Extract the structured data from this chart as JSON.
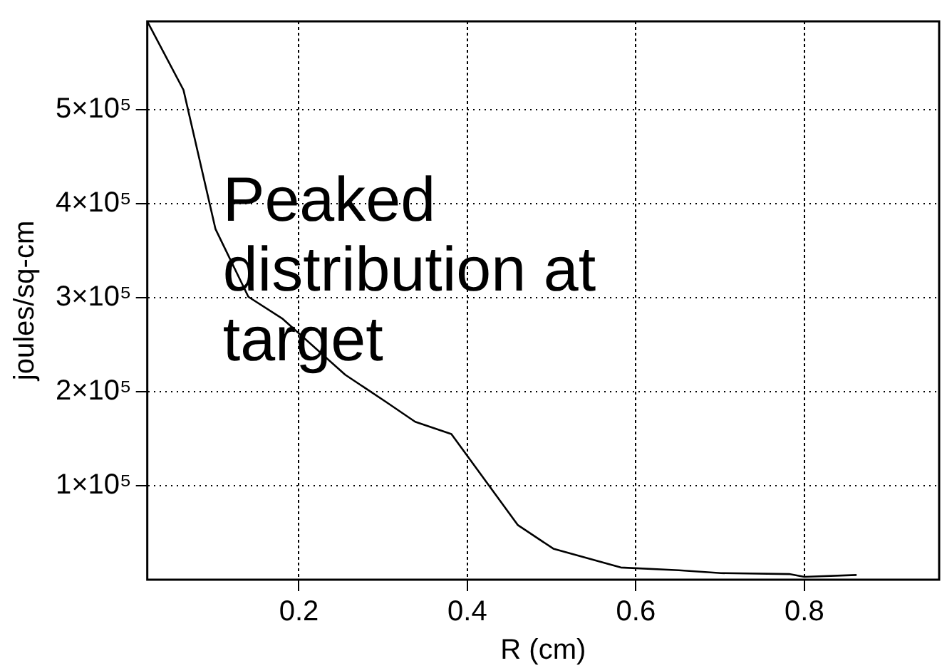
{
  "chart_data": {
    "type": "line",
    "xlabel": "R (cm)",
    "ylabel": "joules/sq-cm",
    "annotations": [
      "Peaked distribution at target"
    ],
    "x": [
      0.02,
      0.063,
      0.101,
      0.14,
      0.18,
      0.255,
      0.302,
      0.338,
      0.381,
      0.46,
      0.502,
      0.582,
      0.651,
      0.701,
      0.782,
      0.8,
      0.862
    ],
    "series": [
      {
        "color": "#000000",
        "values": [
          594000,
          521000,
          373000,
          301000,
          278000,
          218000,
          190000,
          168000,
          155000,
          58000,
          33000,
          13000,
          10000,
          7000,
          6000,
          3000,
          5000
        ]
      }
    ],
    "xlim": [
      0.02,
      0.96
    ],
    "xticks": [
      0.2,
      0.4,
      0.6,
      0.8
    ],
    "ylim": [
      0,
      594000
    ],
    "yticks": [
      {
        "value": 100000,
        "label": "1×10⁵"
      },
      {
        "value": 200000,
        "label": "2×10⁵"
      },
      {
        "value": 300000,
        "label": "3×10⁵"
      },
      {
        "value": 400000,
        "label": "4×10⁵"
      },
      {
        "value": 500000,
        "label": "5×10⁵"
      }
    ],
    "grid": true,
    "marker": "none",
    "line_style": "solid"
  }
}
